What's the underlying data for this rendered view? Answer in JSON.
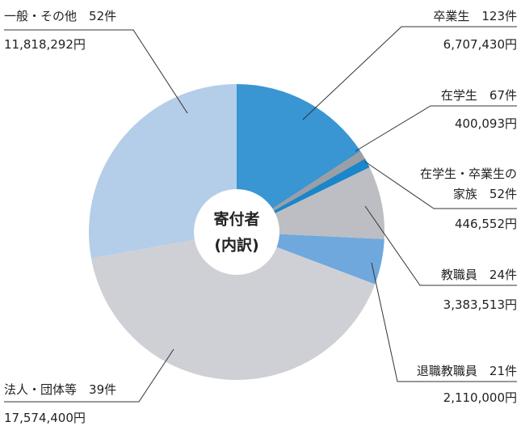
{
  "chart_data": {
    "type": "pie",
    "center_label": [
      "寄付者",
      "(内訳)"
    ],
    "categories": [
      "卒業生",
      "在学生",
      "在学生・卒業生の家族",
      "教職員",
      "退職教職員",
      "法人・団体等",
      "一般・その他"
    ],
    "counts": [
      123,
      67,
      52,
      24,
      21,
      39,
      52
    ],
    "count_labels": [
      "123件",
      "67件",
      "52件",
      "24件",
      "21件",
      "39件",
      "52件"
    ],
    "values": [
      6707430,
      400093,
      446552,
      3383513,
      2110000,
      17574400,
      11818292
    ],
    "value_labels": [
      "6,707,430円",
      "400,093円",
      "446,552円",
      "3,383,513円",
      "2,110,000円",
      "17,574,400円",
      "11,818,292円"
    ],
    "colors": [
      "#3a95d3",
      "#9c9ea3",
      "#1b86c9",
      "#bdbec3",
      "#6fa8dc",
      "#cfd0d5",
      "#b4cde9"
    ]
  }
}
